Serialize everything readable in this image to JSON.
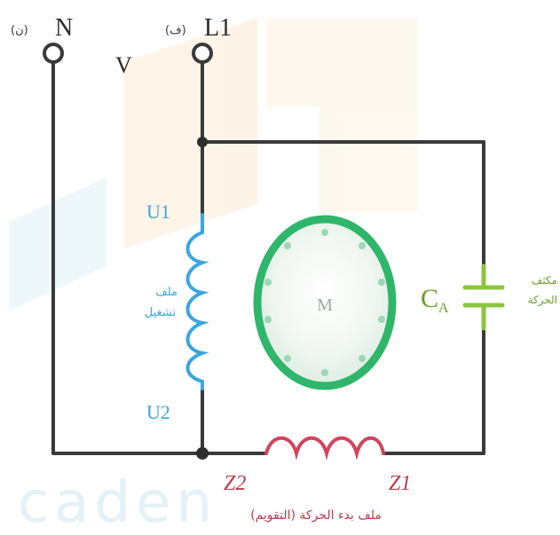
{
  "terminals": {
    "neutral": {
      "label": "N",
      "note": "(ن)"
    },
    "line": {
      "label": "L1",
      "note": "(ف)"
    },
    "supply_label": "V"
  },
  "main_winding": {
    "start": "U1",
    "end": "U2",
    "caption_line1": "ملف",
    "caption_line2": "تشغيل"
  },
  "aux_winding": {
    "start": "Z2",
    "end": "Z1",
    "caption": "ملف بدء الحركة (التقويم)"
  },
  "rotor": {
    "label": "M"
  },
  "capacitor": {
    "label": "C",
    "subscript": "A",
    "caption_line1": "مكثف",
    "caption_line2": "الحركة"
  },
  "watermark": "caden",
  "colors": {
    "wire": "#3a3a3a",
    "main_winding": "#3aa6e0",
    "aux_winding": "#d3445c",
    "rotor": "#2fb66b",
    "capacitor": "#8cc63e",
    "label_blue": "#3aa6e0",
    "label_red": "#b73b4b",
    "label_green": "#6a9e2a"
  }
}
